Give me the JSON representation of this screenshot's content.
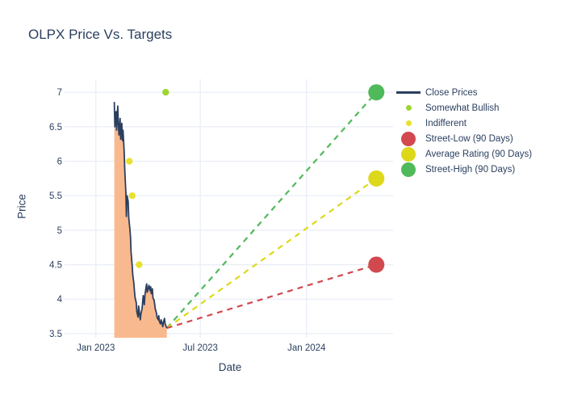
{
  "chart_data": {
    "type": "line",
    "title": "OLPX Price Vs. Targets",
    "xlabel": "Date",
    "ylabel": "Price",
    "x_range": [
      "2022-11-12",
      "2024-05-30"
    ],
    "y_range": [
      3.44,
      7.19
    ],
    "y_ticks": [
      3.5,
      4,
      4.5,
      5,
      5.5,
      6,
      6.5,
      7
    ],
    "y_tick_labels": [
      "3.5",
      "4",
      "4.5",
      "5",
      "5.5",
      "6",
      "6.5",
      "7"
    ],
    "x_ticks": [
      {
        "date": "2023-01-01",
        "label": "Jan 2023"
      },
      {
        "date": "2023-07-01",
        "label": "Jul 2023"
      },
      {
        "date": "2024-01-01",
        "label": "Jan 2024"
      }
    ],
    "grid": true,
    "legend_position": "right",
    "colors": {
      "close_line": "#2a3f5f",
      "close_fill": "#f9b98e",
      "somewhat_bullish": "#9ed631",
      "indifferent": "#e8e22f",
      "street_low": "#d1494f",
      "average_rating": "#ddd81a",
      "street_high": "#50b95a",
      "gridline": "#e9eef7"
    },
    "series": {
      "close_prices": {
        "name": "Close Prices",
        "dates": [
          "2023-02-02",
          "2023-02-03",
          "2023-02-05",
          "2023-02-06",
          "2023-02-08",
          "2023-02-09",
          "2023-02-10",
          "2023-02-12",
          "2023-02-13",
          "2023-02-15",
          "2023-02-16",
          "2023-02-17",
          "2023-02-19",
          "2023-02-20",
          "2023-02-22",
          "2023-02-23",
          "2023-02-24",
          "2023-02-26",
          "2023-02-27",
          "2023-03-01",
          "2023-03-02",
          "2023-03-03",
          "2023-03-05",
          "2023-03-06",
          "2023-03-08",
          "2023-03-09",
          "2023-03-10",
          "2023-03-12",
          "2023-03-13",
          "2023-03-15",
          "2023-03-16",
          "2023-03-17",
          "2023-03-19",
          "2023-03-20",
          "2023-03-22",
          "2023-03-23",
          "2023-03-24",
          "2023-03-26",
          "2023-03-27",
          "2023-03-29",
          "2023-03-30",
          "2023-03-31",
          "2023-04-02",
          "2023-04-03",
          "2023-04-05",
          "2023-04-06",
          "2023-04-07",
          "2023-04-09",
          "2023-04-10",
          "2023-04-12",
          "2023-04-13",
          "2023-04-14",
          "2023-04-16",
          "2023-04-17",
          "2023-04-19",
          "2023-04-20",
          "2023-04-21",
          "2023-04-23",
          "2023-04-24",
          "2023-04-26",
          "2023-04-27",
          "2023-04-28",
          "2023-04-30",
          "2023-05-01",
          "2023-05-03",
          "2023-05-04"
        ],
        "prices": [
          6.86,
          6.5,
          6.72,
          6.45,
          6.8,
          6.55,
          6.38,
          6.62,
          6.32,
          6.55,
          6.3,
          6.45,
          6.15,
          5.9,
          5.55,
          5.2,
          5.5,
          5.42,
          5.18,
          5.02,
          4.9,
          4.68,
          4.48,
          4.35,
          4.22,
          4.1,
          4.02,
          3.95,
          3.82,
          3.74,
          3.9,
          3.84,
          3.7,
          3.78,
          3.86,
          3.95,
          4.05,
          3.92,
          4.05,
          4.18,
          4.22,
          4.1,
          4.16,
          4.2,
          4.12,
          4.18,
          4.08,
          4.15,
          4.02,
          3.98,
          3.92,
          3.86,
          3.8,
          3.74,
          3.7,
          3.76,
          3.68,
          3.64,
          3.7,
          3.64,
          3.6,
          3.66,
          3.72,
          3.64,
          3.6,
          3.58
        ]
      },
      "somewhat_bullish": {
        "name": "Somewhat Bullish",
        "points": [
          {
            "date": "2023-05-02",
            "price": 7.0
          }
        ]
      },
      "indifferent": {
        "name": "Indifferent",
        "points": [
          {
            "date": "2023-02-28",
            "price": 6.0
          },
          {
            "date": "2023-03-05",
            "price": 5.5
          },
          {
            "date": "2023-03-17",
            "price": 4.5
          }
        ]
      },
      "targets": {
        "anchor": {
          "date": "2023-05-04",
          "price": 3.58
        },
        "projection_date": "2024-05-01",
        "street_low": {
          "name": "Street-Low (90 Days)",
          "value": 4.5
        },
        "average_rating": {
          "name": "Average Rating (90 Days)",
          "value": 5.75
        },
        "street_high": {
          "name": "Street-High (90 Days)",
          "value": 7.0
        }
      }
    },
    "legend": [
      {
        "label": "Close Prices",
        "marker": "line",
        "color": "#2a3f5f"
      },
      {
        "label": "Somewhat Bullish",
        "marker": "dot-small",
        "color": "#9ed631"
      },
      {
        "label": "Indifferent",
        "marker": "dot-small",
        "color": "#e8e22f"
      },
      {
        "label": "Street-Low (90 Days)",
        "marker": "dot-large",
        "color": "#d1494f"
      },
      {
        "label": "Average Rating (90 Days)",
        "marker": "dot-large",
        "color": "#ddd81a"
      },
      {
        "label": "Street-High (90 Days)",
        "marker": "dot-large",
        "color": "#50b95a"
      }
    ]
  }
}
